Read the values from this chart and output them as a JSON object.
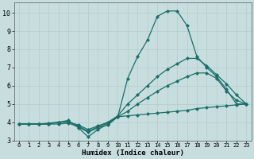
{
  "title": "",
  "xlabel": "Humidex (Indice chaleur)",
  "ylabel": "",
  "bg_color": "#c8dede",
  "grid_color": "#b0cccc",
  "line_color": "#1a6e6a",
  "xlim": [
    -0.5,
    23.5
  ],
  "ylim": [
    3.0,
    10.55
  ],
  "xticks": [
    0,
    1,
    2,
    3,
    4,
    5,
    6,
    7,
    8,
    9,
    10,
    11,
    12,
    13,
    14,
    15,
    16,
    17,
    18,
    19,
    20,
    21,
    22,
    23
  ],
  "yticks": [
    3,
    4,
    5,
    6,
    7,
    8,
    9,
    10
  ],
  "series_max": {
    "x": [
      0,
      1,
      2,
      3,
      4,
      5,
      6,
      7,
      8,
      9,
      10,
      11,
      12,
      13,
      14,
      15,
      16,
      17,
      18,
      19,
      20,
      21,
      22,
      23
    ],
    "y": [
      3.9,
      3.9,
      3.9,
      3.9,
      4.0,
      4.1,
      3.7,
      3.2,
      3.6,
      3.9,
      4.3,
      6.4,
      7.6,
      8.5,
      9.8,
      10.1,
      10.1,
      9.3,
      7.6,
      7.0,
      6.5,
      5.8,
      5.0,
      5.0
    ]
  },
  "series_p75": {
    "x": [
      0,
      1,
      2,
      3,
      4,
      5,
      6,
      7,
      8,
      9,
      10,
      11,
      12,
      13,
      14,
      15,
      16,
      17,
      18,
      19,
      20,
      21,
      22,
      23
    ],
    "y": [
      3.9,
      3.9,
      3.9,
      3.9,
      4.0,
      4.0,
      3.85,
      3.6,
      3.8,
      4.0,
      4.35,
      5.0,
      5.5,
      6.0,
      6.5,
      6.9,
      7.2,
      7.5,
      7.5,
      7.1,
      6.6,
      6.1,
      5.5,
      5.0
    ]
  },
  "series_avg": {
    "x": [
      0,
      1,
      2,
      3,
      4,
      5,
      6,
      7,
      8,
      9,
      10,
      11,
      12,
      13,
      14,
      15,
      16,
      17,
      18,
      19,
      20,
      21,
      22,
      23
    ],
    "y": [
      3.9,
      3.9,
      3.9,
      3.95,
      4.0,
      4.05,
      3.8,
      3.5,
      3.75,
      3.95,
      4.3,
      4.6,
      5.0,
      5.35,
      5.7,
      6.0,
      6.25,
      6.5,
      6.7,
      6.7,
      6.4,
      5.7,
      5.2,
      5.0
    ]
  },
  "series_min": {
    "x": [
      0,
      1,
      2,
      3,
      4,
      5,
      6,
      7,
      8,
      9,
      10,
      11,
      12,
      13,
      14,
      15,
      16,
      17,
      18,
      19,
      20,
      21,
      22,
      23
    ],
    "y": [
      3.9,
      3.9,
      3.9,
      3.9,
      3.9,
      3.95,
      3.75,
      3.45,
      3.7,
      3.85,
      4.3,
      4.35,
      4.4,
      4.45,
      4.5,
      4.55,
      4.6,
      4.65,
      4.75,
      4.8,
      4.85,
      4.9,
      4.95,
      5.0
    ]
  }
}
